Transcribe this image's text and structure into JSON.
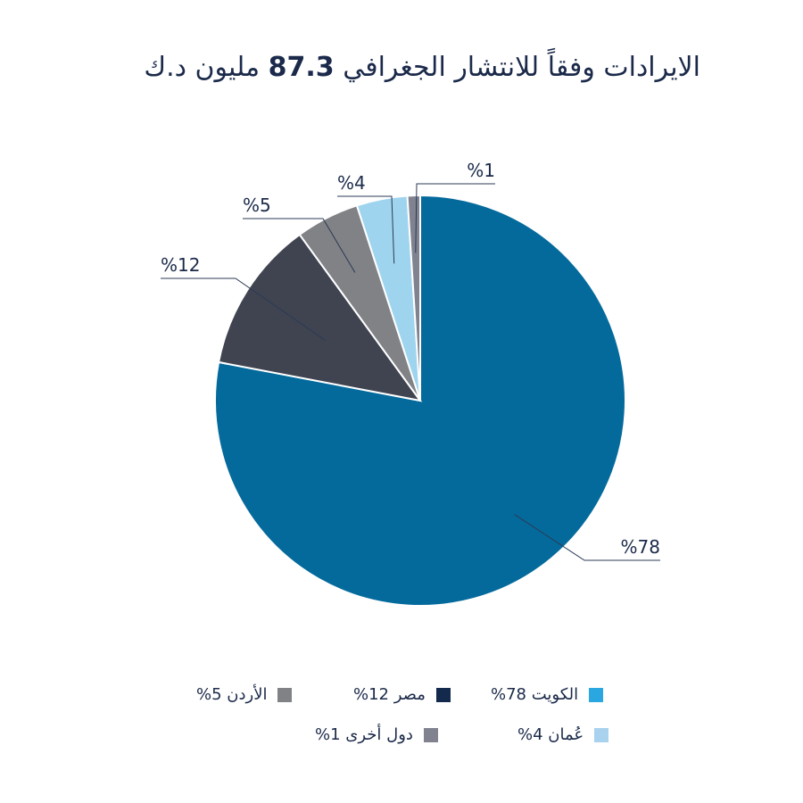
{
  "chart_data": {
    "type": "pie",
    "title": "الايرادات وفقاً للانتشار الجغرافي 87.3 مليون د.ك",
    "title_text": "الايرادات وفقاً للانتشار الجغرافي",
    "title_value": "87.3",
    "title_unit": "مليون د.ك",
    "slices": [
      {
        "name": "الكويت",
        "value": 78,
        "label": "%78",
        "color": "#046a9c",
        "legend_color": "#2aa7e0",
        "legend_label": "الكويت 78%"
      },
      {
        "name": "مصر",
        "value": 12,
        "label": "%12",
        "color": "#404451",
        "legend_color": "#142a4c",
        "legend_label": "مصر 12%"
      },
      {
        "name": "الأردن",
        "value": 5,
        "label": "%5",
        "color": "#808286",
        "legend_color": "#808286",
        "legend_label": "الأردن 5%"
      },
      {
        "name": "عُمان",
        "value": 4,
        "label": "%4",
        "color": "#9fd4ef",
        "legend_color": "#a9d2ee",
        "legend_label": "عُمان 4%"
      },
      {
        "name": "دول أخرى",
        "value": 1,
        "label": "%1",
        "color": "#80838f",
        "legend_color": "#80838f",
        "legend_label": "دول أخرى 1%"
      }
    ],
    "legend_placement": "bottom"
  }
}
